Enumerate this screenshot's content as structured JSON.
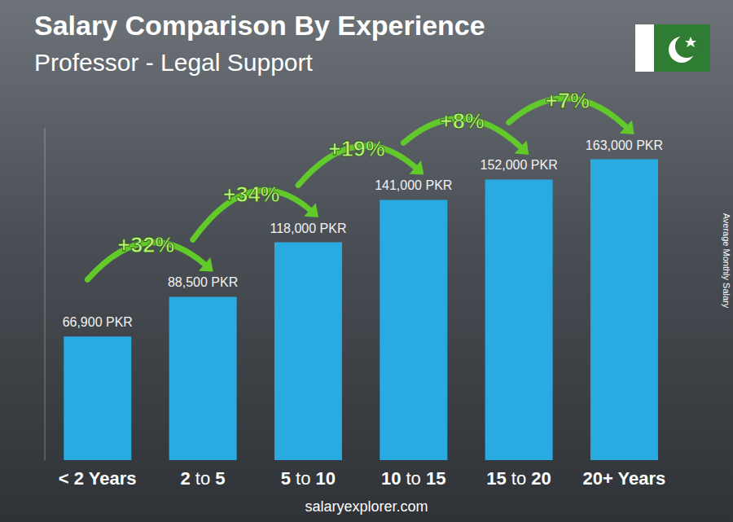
{
  "chart_data": {
    "type": "bar",
    "title": "Salary Comparison By Experience",
    "subtitle": "Professor - Legal Support",
    "y_label": "Average Monthly Salary",
    "categories": [
      "< 2 Years",
      "2 to 5",
      "5 to 10",
      "10 to 15",
      "15 to 20",
      "20+ Years"
    ],
    "values": [
      66900,
      88500,
      118000,
      141000,
      152000,
      163000
    ],
    "value_labels": [
      "66,900 PKR",
      "88,500 PKR",
      "118,000 PKR",
      "141,000 PKR",
      "152,000 PKR",
      "163,000 PKR"
    ],
    "annotations": [
      "+32%",
      "+34%",
      "+19%",
      "+8%",
      "+7%"
    ],
    "footer": "salaryexplorer.com",
    "color": "#29abe2",
    "ylim": [
      0,
      180000
    ],
    "tick_labels": "x",
    "data_labels": true,
    "grid": false
  }
}
